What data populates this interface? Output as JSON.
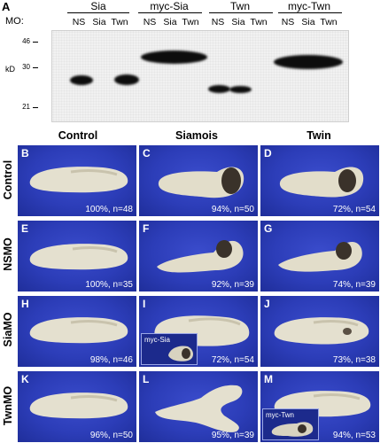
{
  "panel_a": {
    "letter": "A",
    "mo_label": "MO:",
    "kd_label": "kD",
    "groups": [
      "Sia",
      "myc-Sia",
      "Twn",
      "myc-Twn"
    ],
    "lanes": [
      "NS",
      "Sia",
      "Twn"
    ],
    "markers": [
      "46",
      "30",
      "21"
    ]
  },
  "columns": [
    "Control",
    "Siamois",
    "Twin"
  ],
  "rows": [
    "Control",
    "NSMO",
    "SiaMO",
    "TwnMO"
  ],
  "cells": [
    {
      "letter": "B",
      "stat": "100%, n=48"
    },
    {
      "letter": "C",
      "stat": "94%, n=50"
    },
    {
      "letter": "D",
      "stat": "72%, n=54"
    },
    {
      "letter": "E",
      "stat": "100%, n=35"
    },
    {
      "letter": "F",
      "stat": "92%, n=39"
    },
    {
      "letter": "G",
      "stat": "74%, n=39"
    },
    {
      "letter": "H",
      "stat": "98%, n=46"
    },
    {
      "letter": "I",
      "stat": "72%, n=54"
    },
    {
      "letter": "J",
      "stat": "73%, n=38"
    },
    {
      "letter": "K",
      "stat": "96%, n=50"
    },
    {
      "letter": "L",
      "stat": "95%, n=39"
    },
    {
      "letter": "M",
      "stat": "94%, n=53"
    }
  ],
  "insets": {
    "I": "myc-Sia",
    "M": "myc-Twn"
  },
  "colors": {
    "embryo_background": "#2c3db8",
    "embryo_body": "#e6e2d4",
    "blot_band": "#0d0d0d"
  }
}
